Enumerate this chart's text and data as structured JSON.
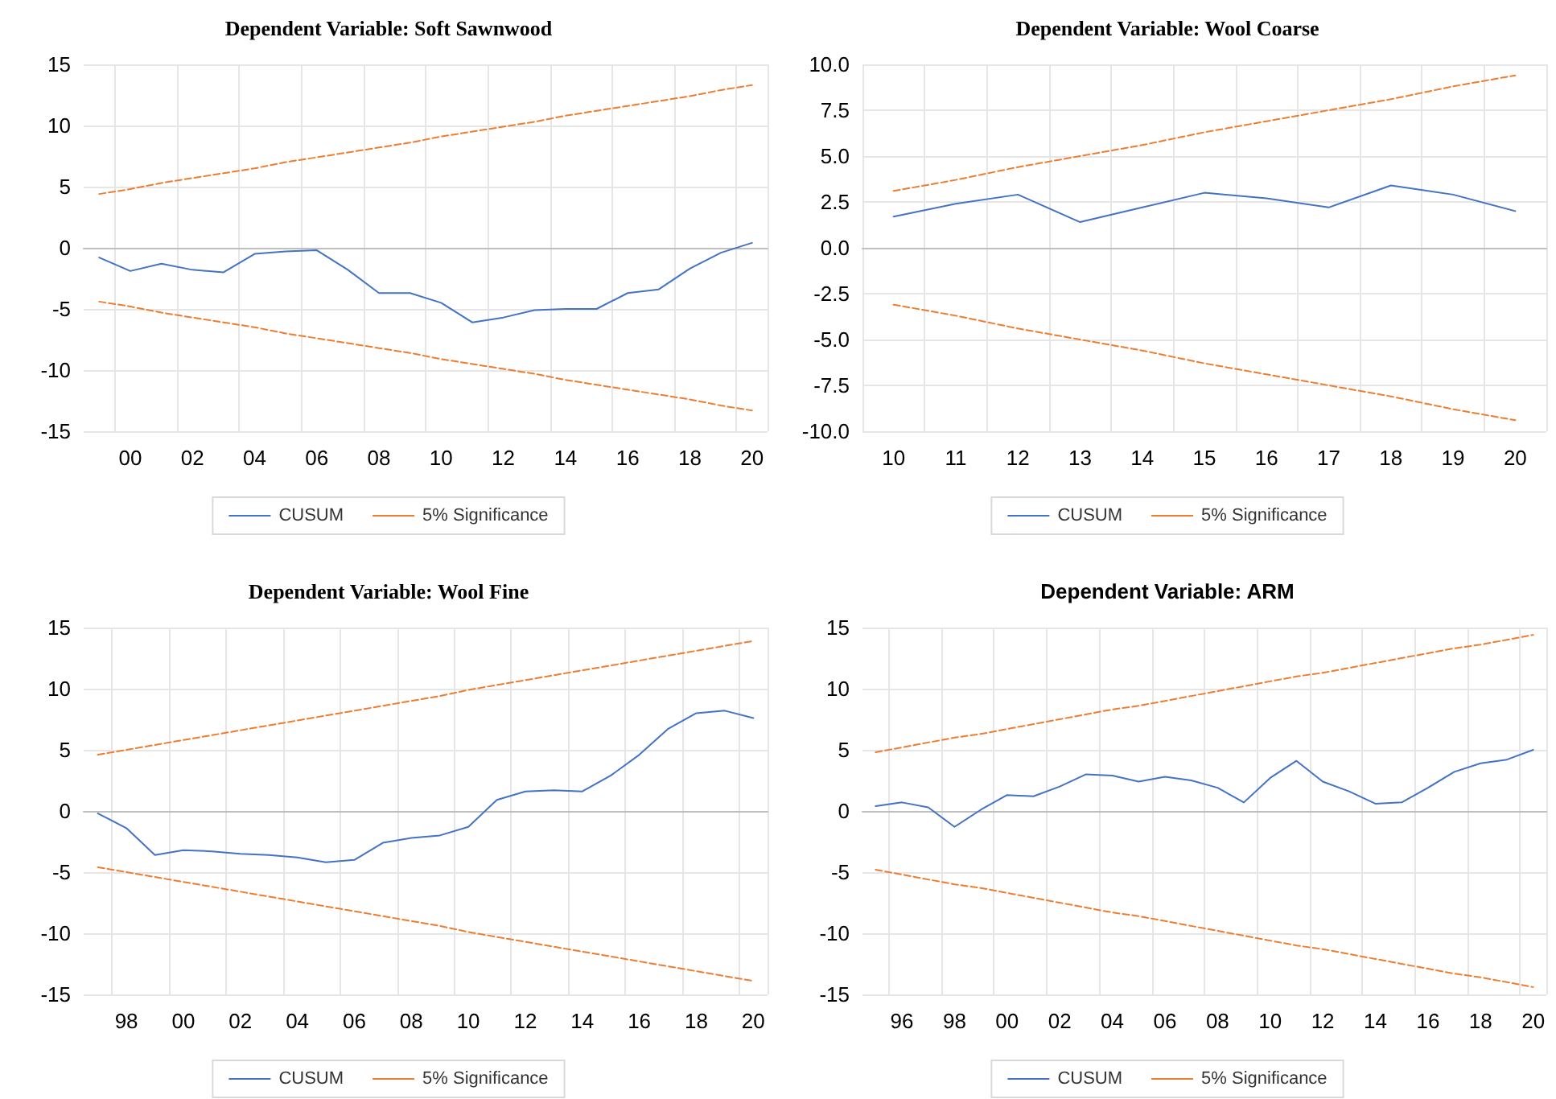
{
  "chart_data": [
    {
      "type": "line",
      "title": "Dependent Variable: Soft Sawnwood",
      "categories": [
        null,
        "00",
        null,
        "02",
        null,
        "04",
        null,
        "06",
        null,
        "08",
        null,
        "10",
        null,
        "12",
        null,
        "14",
        null,
        "16",
        null,
        "18",
        null,
        "20"
      ],
      "ylim": [
        -15,
        15
      ],
      "yticks": [
        -15,
        -10,
        -5,
        0,
        5,
        10,
        15
      ],
      "grid": true,
      "legend": "bottom",
      "marker": "none",
      "series": [
        {
          "name": "CUSUM",
          "color": "#4472c4",
          "line_style": "solid",
          "values": [
            -0.8,
            -1.9,
            -1.3,
            -1.8,
            -2.0,
            -0.5,
            -0.3,
            -0.2,
            -1.8,
            -3.7,
            -3.7,
            -4.5,
            -6.1,
            -5.7,
            -5.1,
            -5.0,
            -5.0,
            -3.7,
            -3.4,
            -1.7,
            -0.4,
            0.4
          ]
        },
        {
          "name": "5% Significance",
          "color": "#ed7d31",
          "line_style": "dashed",
          "values": [
            4.4,
            4.8,
            5.3,
            5.7,
            6.1,
            6.5,
            7.0,
            7.4,
            7.8,
            8.2,
            8.6,
            9.1,
            9.5,
            9.9,
            10.3,
            10.8,
            11.2,
            11.6,
            12.0,
            12.4,
            12.9,
            13.3
          ]
        },
        {
          "color": "#ed7d31",
          "line_style": "dashed",
          "values": [
            -4.4,
            -4.8,
            -5.3,
            -5.7,
            -6.1,
            -6.5,
            -7.0,
            -7.4,
            -7.8,
            -8.2,
            -8.6,
            -9.1,
            -9.5,
            -9.9,
            -10.3,
            -10.8,
            -11.2,
            -11.6,
            -12.0,
            -12.4,
            -12.9,
            -13.3
          ]
        }
      ]
    },
    {
      "type": "line",
      "title": "Dependent Variable: Wool Coarse",
      "categories": [
        "10",
        "11",
        "12",
        "13",
        "14",
        "15",
        "16",
        "17",
        "18",
        "19",
        "20"
      ],
      "ylim": [
        -10,
        10
      ],
      "yticks": [
        {
          "value": -10,
          "label": "-10.0"
        },
        {
          "value": -7.5,
          "label": "-7.5"
        },
        {
          "value": -5,
          "label": "-5.0"
        },
        {
          "value": -2.5,
          "label": "-2.5"
        },
        {
          "value": 0,
          "label": "0.0"
        },
        {
          "value": 2.5,
          "label": "2.5"
        },
        {
          "value": 5,
          "label": "5.0"
        },
        {
          "value": 7.5,
          "label": "7.5"
        },
        {
          "value": 10,
          "label": "10.0"
        }
      ],
      "grid": true,
      "legend": "bottom",
      "marker": "none",
      "series": [
        {
          "name": "CUSUM",
          "color": "#4472c4",
          "line_style": "solid",
          "values": [
            1.7,
            2.4,
            2.9,
            1.4,
            2.2,
            3.0,
            2.7,
            2.2,
            3.4,
            2.9,
            2.0
          ]
        },
        {
          "name": "5% Significance",
          "color": "#ed7d31",
          "line_style": "dashed",
          "values": [
            3.1,
            3.7,
            4.4,
            5.0,
            5.6,
            6.3,
            6.9,
            7.5,
            8.1,
            8.8,
            9.4
          ]
        },
        {
          "color": "#ed7d31",
          "line_style": "dashed",
          "values": [
            -3.1,
            -3.7,
            -4.4,
            -5.0,
            -5.6,
            -6.3,
            -6.9,
            -7.5,
            -8.1,
            -8.8,
            -9.4
          ]
        }
      ]
    },
    {
      "type": "line",
      "title": "Dependent Variable: Wool Fine",
      "categories": [
        null,
        "98",
        null,
        "00",
        null,
        "02",
        null,
        "04",
        null,
        "06",
        null,
        "08",
        null,
        "10",
        null,
        "12",
        null,
        "14",
        null,
        "16",
        null,
        "18",
        null,
        "20"
      ],
      "ylim": [
        -15,
        15
      ],
      "yticks": [
        -15,
        -10,
        -5,
        0,
        5,
        10,
        15
      ],
      "grid": true,
      "legend": "bottom",
      "marker": "none",
      "series": [
        {
          "name": "CUSUM",
          "color": "#4472c4",
          "line_style": "solid",
          "values": [
            -0.2,
            -1.4,
            -3.6,
            -3.2,
            -3.3,
            -3.5,
            -3.6,
            -3.8,
            -4.2,
            -4.0,
            -2.6,
            -2.2,
            -2.0,
            -1.3,
            0.9,
            1.6,
            1.7,
            1.6,
            2.9,
            4.6,
            6.7,
            8.0,
            8.2,
            7.6
          ]
        },
        {
          "name": "5% Significance",
          "color": "#ed7d31",
          "line_style": "dashed",
          "values": [
            4.6,
            5.0,
            5.4,
            5.8,
            6.2,
            6.6,
            7.0,
            7.4,
            7.8,
            8.2,
            8.6,
            9.0,
            9.4,
            9.9,
            10.3,
            10.7,
            11.1,
            11.5,
            11.9,
            12.3,
            12.7,
            13.1,
            13.5,
            13.9
          ]
        },
        {
          "color": "#ed7d31",
          "line_style": "dashed",
          "values": [
            -4.6,
            -5.0,
            -5.4,
            -5.8,
            -6.2,
            -6.6,
            -7.0,
            -7.4,
            -7.8,
            -8.2,
            -8.6,
            -9.0,
            -9.4,
            -9.9,
            -10.3,
            -10.7,
            -11.1,
            -11.5,
            -11.9,
            -12.3,
            -12.7,
            -13.1,
            -13.5,
            -13.9
          ]
        }
      ]
    },
    {
      "type": "line",
      "title": "Dependent Variable: ARM",
      "categories": [
        null,
        "96",
        null,
        "98",
        null,
        "00",
        null,
        "02",
        null,
        "04",
        null,
        "06",
        null,
        "08",
        null,
        "10",
        null,
        "12",
        null,
        "14",
        null,
        "16",
        null,
        "18",
        null,
        "20"
      ],
      "ylim": [
        -15,
        15
      ],
      "yticks": [
        -15,
        -10,
        -5,
        0,
        5,
        10,
        15
      ],
      "grid": true,
      "legend": "bottom",
      "marker": "none",
      "series": [
        {
          "name": "CUSUM",
          "color": "#4472c4",
          "line_style": "solid",
          "values": [
            0.4,
            0.7,
            0.3,
            -1.3,
            0.1,
            1.3,
            1.2,
            2.0,
            3.0,
            2.9,
            2.4,
            2.8,
            2.5,
            1.9,
            0.7,
            2.7,
            4.1,
            2.4,
            1.6,
            0.6,
            0.7,
            1.9,
            3.2,
            3.9,
            4.2,
            5.0
          ]
        },
        {
          "name": "5% Significance",
          "color": "#ed7d31",
          "line_style": "dashed",
          "values": [
            4.8,
            5.2,
            5.6,
            6.0,
            6.3,
            6.7,
            7.1,
            7.5,
            7.9,
            8.3,
            8.6,
            9.0,
            9.4,
            9.8,
            10.2,
            10.6,
            11.0,
            11.3,
            11.7,
            12.1,
            12.5,
            12.9,
            13.3,
            13.6,
            14.0,
            14.4
          ]
        },
        {
          "color": "#ed7d31",
          "line_style": "dashed",
          "values": [
            -4.8,
            -5.2,
            -5.6,
            -6.0,
            -6.3,
            -6.7,
            -7.1,
            -7.5,
            -7.9,
            -8.3,
            -8.6,
            -9.0,
            -9.4,
            -9.8,
            -10.2,
            -10.6,
            -11.0,
            -11.3,
            -11.7,
            -12.1,
            -12.5,
            -12.9,
            -13.3,
            -13.6,
            -14.0,
            -14.4
          ]
        }
      ]
    }
  ]
}
